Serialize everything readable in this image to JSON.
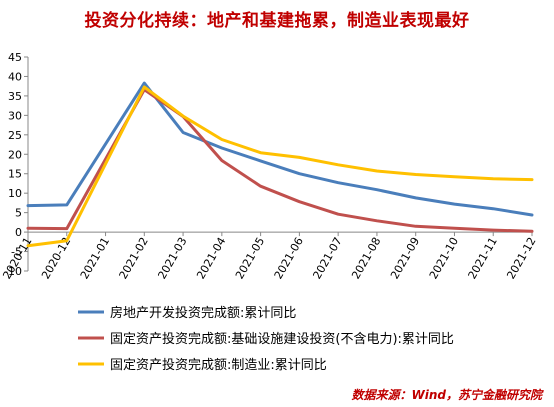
{
  "chart_data": {
    "type": "line",
    "title": "投资分化持续：地产和基建拖累，制造业表现最好",
    "categories": [
      "2020-11",
      "2020-12",
      "2021-01",
      "2021-02",
      "2021-03",
      "2021-04",
      "2021-05",
      "2021-06",
      "2021-07",
      "2021-08",
      "2021-09",
      "2021-10",
      "2021-11",
      "2021-12"
    ],
    "ylim": [
      -10,
      45
    ],
    "yticks": [
      -10,
      -5,
      0,
      5,
      10,
      15,
      20,
      25,
      30,
      35,
      40,
      45
    ],
    "grid": false,
    "legend_position": "bottom",
    "series": [
      {
        "name": "房地产开发投资完成额:累计同比",
        "color": "#4a7ebb",
        "values": [
          6.8,
          7.0,
          null,
          38.3,
          25.6,
          21.6,
          18.3,
          15.0,
          12.7,
          10.9,
          8.8,
          7.2,
          6.0,
          4.4
        ]
      },
      {
        "name": "固定资产投资完成额:基础设施建设投资(不含电力):累计同比",
        "color": "#c0504d",
        "values": [
          1.0,
          0.9,
          null,
          36.6,
          29.7,
          18.4,
          11.8,
          7.8,
          4.6,
          2.9,
          1.5,
          1.0,
          0.5,
          0.2
        ]
      },
      {
        "name": "固定资产投资完成额:制造业:累计同比",
        "color": "#ffc000",
        "values": [
          -3.5,
          -2.2,
          null,
          37.3,
          29.8,
          23.8,
          20.4,
          19.2,
          17.3,
          15.7,
          14.8,
          14.2,
          13.7,
          13.5
        ]
      }
    ]
  },
  "source": "数据来源：Wind，苏宁金融研究院"
}
